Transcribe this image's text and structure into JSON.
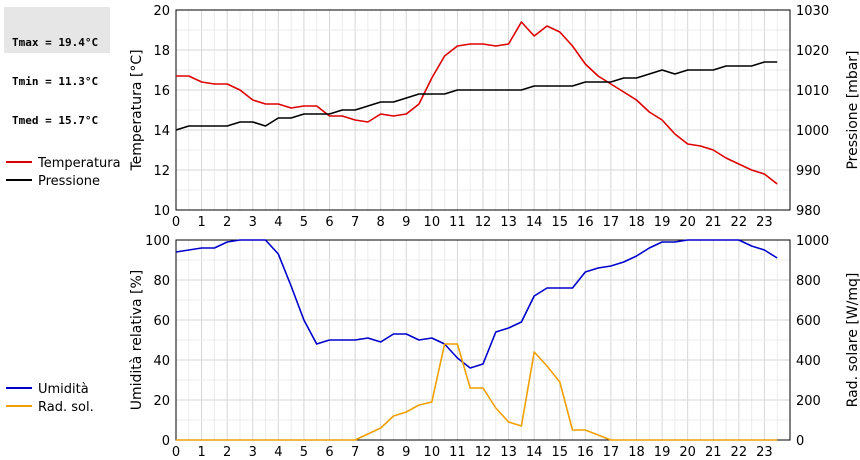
{
  "stats": {
    "tmax": "Tmax = 19.4°C",
    "tmin": "Tmin = 11.3°C",
    "tmed": "Tmed = 15.7°C"
  },
  "colors": {
    "temperature": "#dd0000",
    "pressure": "#000000",
    "humidity": "#0000cc",
    "solar": "#f0a000",
    "grid": "#d6d6d6"
  },
  "chart_data": [
    {
      "type": "line",
      "xlim": [
        0,
        24
      ],
      "xticks": [
        0,
        1,
        2,
        3,
        4,
        5,
        6,
        7,
        8,
        9,
        10,
        11,
        12,
        13,
        14,
        15,
        16,
        17,
        18,
        19,
        20,
        21,
        22,
        23
      ],
      "xlabel": "",
      "ylabel_left": "Temperatura [°C]",
      "ylabel_right": "Pressione [mbar]",
      "ylim_left": [
        10,
        20
      ],
      "ylim_right": [
        980,
        1030
      ],
      "yticks_left": [
        10,
        12,
        14,
        16,
        18,
        20
      ],
      "yticks_right": [
        980,
        990,
        1000,
        1010,
        1020,
        1030
      ],
      "grid": true,
      "legend": "left",
      "series": [
        {
          "name": "Temperatura",
          "axis": "left",
          "x": [
            0,
            0.5,
            1,
            1.5,
            2,
            2.5,
            3,
            3.5,
            4,
            4.5,
            5,
            5.5,
            6,
            6.5,
            7,
            7.5,
            8,
            8.5,
            9,
            9.5,
            10,
            10.5,
            11,
            11.5,
            12,
            12.5,
            13,
            13.5,
            14,
            14.5,
            15,
            15.5,
            16,
            16.5,
            17,
            17.5,
            18,
            18.5,
            19,
            19.5,
            20,
            20.5,
            21,
            21.5,
            22,
            22.5,
            23,
            23.5
          ],
          "values": [
            16.7,
            16.7,
            16.4,
            16.3,
            16.3,
            16.0,
            15.5,
            15.3,
            15.3,
            15.1,
            15.2,
            15.2,
            14.7,
            14.7,
            14.5,
            14.4,
            14.8,
            14.7,
            14.8,
            15.3,
            16.6,
            17.7,
            18.2,
            18.3,
            18.3,
            18.2,
            18.3,
            19.4,
            18.7,
            19.2,
            18.9,
            18.2,
            17.3,
            16.7,
            16.3,
            15.9,
            15.5,
            14.9,
            14.5,
            13.8,
            13.3,
            13.2,
            13.0,
            12.6,
            12.3,
            12.0,
            11.8,
            11.3
          ]
        },
        {
          "name": "Pressione",
          "axis": "right",
          "x": [
            0,
            0.5,
            1,
            1.5,
            2,
            2.5,
            3,
            3.5,
            4,
            4.5,
            5,
            5.5,
            6,
            6.5,
            7,
            7.5,
            8,
            8.5,
            9,
            9.5,
            10,
            10.5,
            11,
            11.5,
            12,
            12.5,
            13,
            13.5,
            14,
            14.5,
            15,
            15.5,
            16,
            16.5,
            17,
            17.5,
            18,
            18.5,
            19,
            19.5,
            20,
            20.5,
            21,
            21.5,
            22,
            22.5,
            23,
            23.5
          ],
          "values": [
            1000,
            1001,
            1001,
            1001,
            1001,
            1002,
            1002,
            1001,
            1003,
            1003,
            1004,
            1004,
            1004,
            1005,
            1005,
            1006,
            1007,
            1007,
            1008,
            1009,
            1009,
            1009,
            1010,
            1010,
            1010,
            1010,
            1010,
            1010,
            1011,
            1011,
            1011,
            1011,
            1012,
            1012,
            1012,
            1013,
            1013,
            1014,
            1015,
            1014,
            1015,
            1015,
            1015,
            1016,
            1016,
            1016,
            1017,
            1017
          ]
        }
      ]
    },
    {
      "type": "line",
      "xlim": [
        0,
        24
      ],
      "xticks": [
        0,
        1,
        2,
        3,
        4,
        5,
        6,
        7,
        8,
        9,
        10,
        11,
        12,
        13,
        14,
        15,
        16,
        17,
        18,
        19,
        20,
        21,
        22,
        23
      ],
      "xlabel": "",
      "ylabel_left": "Umidità relativa [%]",
      "ylabel_right": "Rad. solare [W/mq]",
      "ylim_left": [
        0,
        100
      ],
      "ylim_right": [
        0,
        1000
      ],
      "yticks_left": [
        0,
        20,
        40,
        60,
        80,
        100
      ],
      "yticks_right": [
        0,
        200,
        400,
        600,
        800,
        1000
      ],
      "grid": true,
      "legend": "left",
      "series": [
        {
          "name": "Umidità",
          "axis": "left",
          "x": [
            0,
            0.5,
            1,
            1.5,
            2,
            2.5,
            3,
            3.5,
            4,
            4.5,
            5,
            5.5,
            6,
            6.5,
            7,
            7.5,
            8,
            8.5,
            9,
            9.5,
            10,
            10.5,
            11,
            11.5,
            12,
            12.5,
            13,
            13.5,
            14,
            14.5,
            15,
            15.5,
            16,
            16.5,
            17,
            17.5,
            18,
            18.5,
            19,
            19.5,
            20,
            20.5,
            21,
            21.5,
            22,
            22.5,
            23,
            23.5
          ],
          "values": [
            94,
            95,
            96,
            96,
            99,
            100,
            100,
            100,
            93,
            77,
            60,
            48,
            50,
            50,
            50,
            51,
            49,
            53,
            53,
            50,
            51,
            48,
            41,
            36,
            38,
            54,
            56,
            59,
            72,
            76,
            76,
            76,
            84,
            86,
            87,
            89,
            92,
            96,
            99,
            99,
            100,
            100,
            100,
            100,
            100,
            97,
            95,
            91
          ]
        },
        {
          "name": "Rad. sol.",
          "axis": "right",
          "x": [
            0,
            0.5,
            1,
            1.5,
            2,
            2.5,
            3,
            3.5,
            4,
            4.5,
            5,
            5.5,
            6,
            6.5,
            7,
            7.5,
            8,
            8.5,
            9,
            9.5,
            10,
            10.5,
            11,
            11.5,
            12,
            12.5,
            13,
            13.5,
            14,
            14.5,
            15,
            15.5,
            16,
            16.5,
            17,
            17.5,
            18,
            18.5,
            19,
            19.5,
            20,
            20.5,
            21,
            21.5,
            22,
            22.5,
            23,
            23.5
          ],
          "values": [
            0,
            0,
            0,
            0,
            0,
            0,
            0,
            0,
            0,
            0,
            0,
            0,
            0,
            0,
            0,
            30,
            60,
            120,
            140,
            175,
            190,
            480,
            480,
            260,
            260,
            160,
            90,
            70,
            440,
            370,
            290,
            50,
            50,
            25,
            0,
            0,
            0,
            0,
            0,
            0,
            0,
            0,
            0,
            0,
            0,
            0,
            0,
            0
          ]
        }
      ]
    }
  ]
}
